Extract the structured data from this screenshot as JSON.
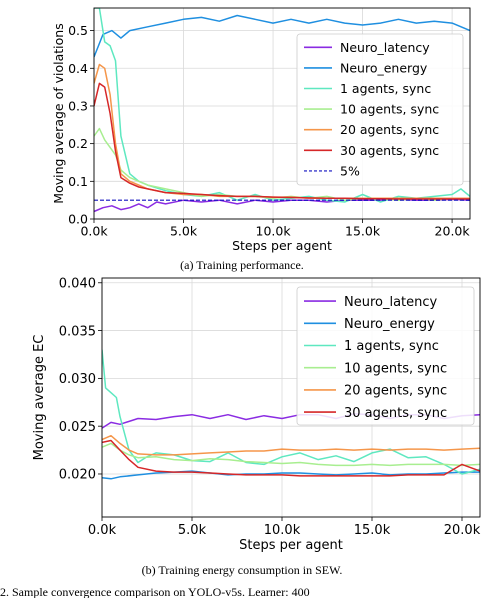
{
  "figure": {
    "caption_a": "(a) Training performance.",
    "caption_b": "(b) Training energy consumption in SEW.",
    "footer_fragment": "2. Sample convergence comparison on YOLO-v5s. Learner: 400"
  },
  "chart_data": [
    {
      "type": "line",
      "title": "",
      "xlabel": "Steps per agent",
      "ylabel": "Moving average of violations",
      "xlim": [
        0,
        21000
      ],
      "ylim": [
        0,
        0.56
      ],
      "xticks": [
        0,
        5000,
        10000,
        15000,
        20000
      ],
      "xtick_labels": [
        "0.0k",
        "5.0k",
        "10.0k",
        "15.0k",
        "20.0k"
      ],
      "yticks": [
        0.0,
        0.1,
        0.2,
        0.3,
        0.4,
        0.5
      ],
      "ytick_labels": [
        "0.0",
        "0.1",
        "0.2",
        "0.3",
        "0.4",
        "0.5"
      ],
      "grid": true,
      "legend_position": "right",
      "series": [
        {
          "name": "Neuro_latency",
          "color": "#8a2be2",
          "style": "solid",
          "x": [
            0,
            500,
            1000,
            1500,
            2000,
            2500,
            3000,
            3500,
            4000,
            5000,
            6000,
            7000,
            8000,
            9000,
            10000,
            11000,
            12000,
            13000,
            14000,
            15000,
            16000,
            17000,
            18000,
            19000,
            20000,
            21000
          ],
          "y": [
            0.02,
            0.03,
            0.035,
            0.025,
            0.03,
            0.04,
            0.03,
            0.045,
            0.04,
            0.05,
            0.045,
            0.05,
            0.04,
            0.05,
            0.045,
            0.05,
            0.05,
            0.045,
            0.05,
            0.05,
            0.05,
            0.052,
            0.05,
            0.05,
            0.052,
            0.05
          ]
        },
        {
          "name": "Neuro_energy",
          "color": "#1f8fe0",
          "style": "solid",
          "x": [
            0,
            500,
            1000,
            1500,
            2000,
            3000,
            4000,
            5000,
            6000,
            7000,
            8000,
            9000,
            10000,
            11000,
            12000,
            13000,
            14000,
            15000,
            16000,
            17000,
            18000,
            19000,
            20000,
            21000
          ],
          "y": [
            0.43,
            0.49,
            0.5,
            0.48,
            0.5,
            0.51,
            0.52,
            0.53,
            0.535,
            0.525,
            0.54,
            0.53,
            0.52,
            0.53,
            0.52,
            0.53,
            0.52,
            0.515,
            0.52,
            0.53,
            0.52,
            0.525,
            0.52,
            0.5
          ]
        },
        {
          "name": "1 agents, sync",
          "color": "#5ee8c0",
          "style": "solid",
          "x": [
            0,
            300,
            600,
            900,
            1200,
            1500,
            2000,
            2500,
            3000,
            4000,
            5000,
            6000,
            7000,
            8000,
            9000,
            10000,
            11000,
            12000,
            13000,
            14000,
            15000,
            16000,
            17000,
            18000,
            19000,
            20000,
            20500,
            21000
          ],
          "y": [
            0.56,
            0.56,
            0.47,
            0.46,
            0.42,
            0.22,
            0.12,
            0.1,
            0.09,
            0.075,
            0.065,
            0.06,
            0.07,
            0.05,
            0.065,
            0.05,
            0.055,
            0.06,
            0.05,
            0.045,
            0.065,
            0.045,
            0.06,
            0.055,
            0.06,
            0.065,
            0.08,
            0.06
          ]
        },
        {
          "name": "10 agents, sync",
          "color": "#a8ee90",
          "style": "solid",
          "x": [
            0,
            300,
            600,
            900,
            1200,
            1500,
            2000,
            2500,
            3000,
            4000,
            5000,
            6000,
            7000,
            8000,
            9000,
            10000,
            11000,
            12000,
            13000,
            14000,
            15000,
            16000,
            17000,
            18000,
            19000,
            20000,
            21000
          ],
          "y": [
            0.22,
            0.24,
            0.21,
            0.19,
            0.17,
            0.13,
            0.11,
            0.1,
            0.09,
            0.08,
            0.07,
            0.06,
            0.065,
            0.06,
            0.06,
            0.055,
            0.06,
            0.055,
            0.06,
            0.05,
            0.055,
            0.055,
            0.05,
            0.055,
            0.05,
            0.055,
            0.055
          ]
        },
        {
          "name": "20 agents, sync",
          "color": "#f5964a",
          "style": "solid",
          "x": [
            0,
            300,
            600,
            900,
            1200,
            1500,
            2000,
            2500,
            3000,
            4000,
            5000,
            6000,
            7000,
            8000,
            9000,
            10000,
            11000,
            12000,
            13000,
            14000,
            15000,
            16000,
            17000,
            18000,
            19000,
            20000,
            21000
          ],
          "y": [
            0.36,
            0.41,
            0.4,
            0.33,
            0.2,
            0.12,
            0.1,
            0.09,
            0.08,
            0.07,
            0.065,
            0.065,
            0.06,
            0.06,
            0.06,
            0.058,
            0.058,
            0.055,
            0.055,
            0.055,
            0.055,
            0.055,
            0.055,
            0.055,
            0.055,
            0.055,
            0.055
          ]
        },
        {
          "name": "30 agents, sync",
          "color": "#d62728",
          "style": "solid",
          "x": [
            0,
            300,
            600,
            900,
            1200,
            1500,
            2000,
            2500,
            3000,
            4000,
            5000,
            6000,
            7000,
            8000,
            9000,
            10000,
            11000,
            12000,
            13000,
            14000,
            15000,
            16000,
            17000,
            18000,
            19000,
            20000,
            21000
          ],
          "y": [
            0.3,
            0.36,
            0.35,
            0.28,
            0.18,
            0.11,
            0.095,
            0.085,
            0.08,
            0.07,
            0.068,
            0.065,
            0.062,
            0.06,
            0.06,
            0.058,
            0.057,
            0.056,
            0.055,
            0.055,
            0.054,
            0.054,
            0.053,
            0.053,
            0.053,
            0.053,
            0.053
          ]
        },
        {
          "name": "5%",
          "color": "#1010c0",
          "style": "dashed",
          "x": [
            0,
            21000
          ],
          "y": [
            0.05,
            0.05
          ]
        }
      ]
    },
    {
      "type": "line",
      "title": "",
      "xlabel": "Steps per agent",
      "ylabel": "Moving average EC",
      "xlim": [
        0,
        21000
      ],
      "ylim": [
        0.0155,
        0.0405
      ],
      "xticks": [
        0,
        5000,
        10000,
        15000,
        20000
      ],
      "xtick_labels": [
        "0.0k",
        "5.0k",
        "10.0k",
        "15.0k",
        "20.0k"
      ],
      "yticks": [
        0.02,
        0.025,
        0.03,
        0.035,
        0.04
      ],
      "ytick_labels": [
        "0.020",
        "0.025",
        "0.030",
        "0.035",
        "0.040"
      ],
      "grid": true,
      "legend_position": "top-right",
      "series": [
        {
          "name": "Neuro_latency",
          "color": "#8a2be2",
          "style": "solid",
          "x": [
            0,
            500,
            1000,
            2000,
            3000,
            4000,
            5000,
            6000,
            7000,
            8000,
            9000,
            10000,
            11000,
            12000,
            13000,
            14000,
            15000,
            16000,
            17000,
            18000,
            19000,
            20000,
            21000
          ],
          "y": [
            0.0248,
            0.0254,
            0.0252,
            0.0258,
            0.0257,
            0.026,
            0.0262,
            0.0258,
            0.0262,
            0.0257,
            0.0261,
            0.0258,
            0.0262,
            0.0262,
            0.0258,
            0.0263,
            0.0262,
            0.0258,
            0.0262,
            0.0262,
            0.0258,
            0.0261,
            0.0262
          ]
        },
        {
          "name": "Neuro_energy",
          "color": "#1f8fe0",
          "style": "solid",
          "x": [
            0,
            500,
            1000,
            2000,
            3000,
            4000,
            5000,
            6000,
            7000,
            8000,
            9000,
            10000,
            11000,
            12000,
            13000,
            14000,
            15000,
            16000,
            17000,
            18000,
            19000,
            20000,
            21000
          ],
          "y": [
            0.0196,
            0.0195,
            0.0197,
            0.0199,
            0.0201,
            0.0202,
            0.0203,
            0.0201,
            0.0199,
            0.02,
            0.02,
            0.0201,
            0.0201,
            0.02,
            0.0199,
            0.02,
            0.0201,
            0.0199,
            0.02,
            0.02,
            0.0201,
            0.0202,
            0.0202
          ]
        },
        {
          "name": "1 agents, sync",
          "color": "#5ee8c0",
          "style": "solid",
          "x": [
            0,
            200,
            500,
            800,
            1000,
            1500,
            2000,
            2500,
            3000,
            4000,
            5000,
            6000,
            7000,
            8000,
            9000,
            10000,
            11000,
            12000,
            13000,
            14000,
            15000,
            16000,
            17000,
            18000,
            19000,
            20000,
            21000
          ],
          "y": [
            0.033,
            0.029,
            0.0285,
            0.028,
            0.026,
            0.0225,
            0.0212,
            0.0218,
            0.0222,
            0.022,
            0.0214,
            0.0213,
            0.0222,
            0.0212,
            0.021,
            0.0218,
            0.0222,
            0.0215,
            0.0219,
            0.0213,
            0.0222,
            0.0226,
            0.0217,
            0.0218,
            0.021,
            0.02,
            0.0205
          ]
        },
        {
          "name": "10 agents, sync",
          "color": "#a8ee90",
          "style": "solid",
          "x": [
            0,
            500,
            1000,
            1500,
            2000,
            3000,
            4000,
            5000,
            6000,
            7000,
            8000,
            9000,
            10000,
            11000,
            12000,
            13000,
            14000,
            15000,
            16000,
            17000,
            18000,
            19000,
            20000,
            21000
          ],
          "y": [
            0.0228,
            0.0232,
            0.0225,
            0.022,
            0.0217,
            0.0218,
            0.0215,
            0.0214,
            0.0216,
            0.0215,
            0.0213,
            0.0212,
            0.0211,
            0.0212,
            0.021,
            0.0209,
            0.0209,
            0.021,
            0.0209,
            0.021,
            0.021,
            0.021,
            0.0209,
            0.021
          ]
        },
        {
          "name": "20 agents, sync",
          "color": "#f5964a",
          "style": "solid",
          "x": [
            0,
            500,
            1000,
            1500,
            2000,
            3000,
            4000,
            5000,
            6000,
            7000,
            8000,
            9000,
            10000,
            11000,
            12000,
            13000,
            14000,
            15000,
            16000,
            17000,
            18000,
            19000,
            20000,
            21000
          ],
          "y": [
            0.0236,
            0.024,
            0.0232,
            0.0225,
            0.0221,
            0.022,
            0.022,
            0.0221,
            0.0222,
            0.0223,
            0.0224,
            0.0224,
            0.0226,
            0.0225,
            0.0225,
            0.0226,
            0.0225,
            0.0226,
            0.0225,
            0.0226,
            0.0226,
            0.0225,
            0.0226,
            0.0227
          ]
        },
        {
          "name": "30 agents, sync",
          "color": "#d62728",
          "style": "solid",
          "x": [
            0,
            500,
            1000,
            1500,
            2000,
            3000,
            4000,
            5000,
            6000,
            7000,
            8000,
            9000,
            10000,
            11000,
            12000,
            13000,
            14000,
            15000,
            16000,
            17000,
            18000,
            19000,
            20000,
            21000
          ],
          "y": [
            0.0233,
            0.0235,
            0.0225,
            0.0215,
            0.0207,
            0.0203,
            0.0202,
            0.0202,
            0.0201,
            0.02,
            0.0199,
            0.0199,
            0.0199,
            0.0198,
            0.0198,
            0.0198,
            0.0198,
            0.0198,
            0.0198,
            0.0199,
            0.0199,
            0.0199,
            0.021,
            0.0203
          ]
        }
      ]
    }
  ]
}
